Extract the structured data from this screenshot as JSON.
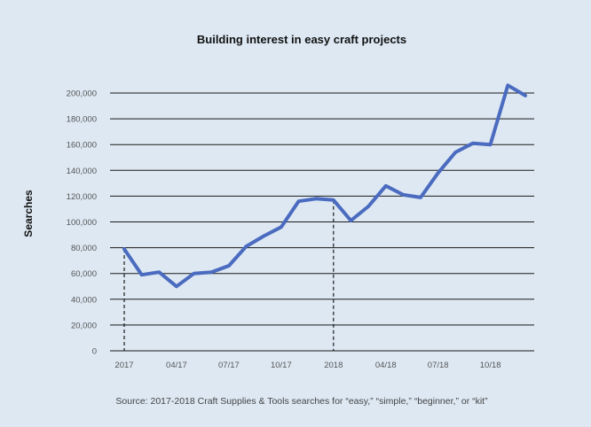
{
  "chart_data": {
    "type": "line",
    "title": "Building interest in easy craft projects",
    "ylabel": "Searches",
    "source": "Source: 2017-2018 Craft Supplies & Tools searches for “easy,” “simple,” “beginner,” or “kit”",
    "ylim": [
      0,
      200000
    ],
    "yticks": [
      0,
      20000,
      40000,
      60000,
      80000,
      100000,
      120000,
      140000,
      160000,
      180000,
      200000
    ],
    "ytick_labels": [
      "0",
      "20,000",
      "40,000",
      "60,000",
      "80,000",
      "100,000",
      "120,000",
      "140,000",
      "160,000",
      "180,000",
      "200,000"
    ],
    "xtick_labels": [
      {
        "index": 0,
        "label": "2017"
      },
      {
        "index": 3,
        "label": "04/17"
      },
      {
        "index": 6,
        "label": "07/17"
      },
      {
        "index": 9,
        "label": "10/17"
      },
      {
        "index": 12,
        "label": "2018"
      },
      {
        "index": 15,
        "label": "04/18"
      },
      {
        "index": 18,
        "label": "07/18"
      },
      {
        "index": 21,
        "label": "10/18"
      }
    ],
    "grid": true,
    "series": [
      {
        "color": "#4a6bbf",
        "values": [
          79000,
          59000,
          61000,
          50000,
          60000,
          61000,
          66000,
          81000,
          89000,
          96000,
          116000,
          118000,
          117000,
          101000,
          112000,
          128000,
          121000,
          119000,
          138000,
          154000,
          161000,
          160000,
          206000,
          198000
        ]
      }
    ],
    "annotations": [
      {
        "type": "vline-dashed",
        "index": 0
      },
      {
        "type": "vline-dashed",
        "index": 12
      }
    ]
  }
}
